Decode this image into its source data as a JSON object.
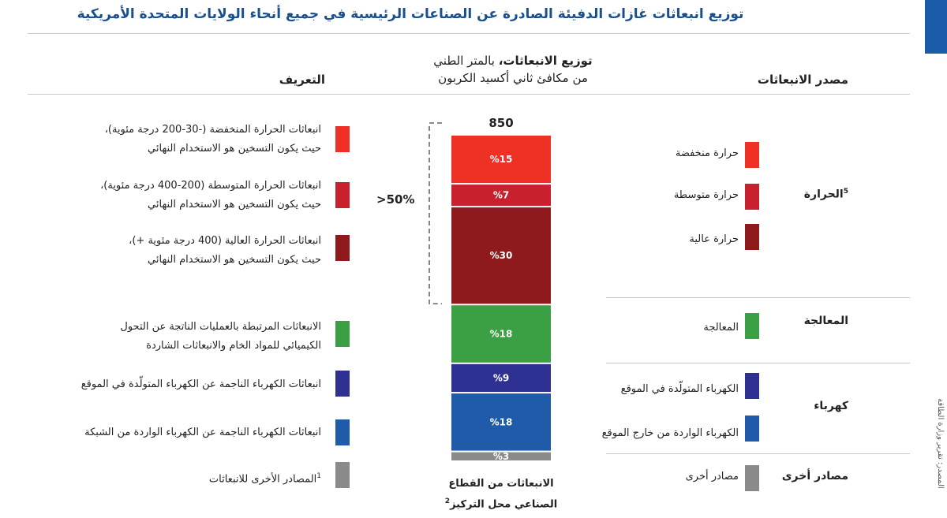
{
  "title": "توزيع انبعاثات غازات الدفيئة الصادرة عن الصناعات الرئيسية في جميع أنحاء الولايات المتحدة الأمريكية",
  "source_note": "المصدر: تقرير وزارة الطاقة",
  "headers": {
    "source": "مصدر الانبعاثات",
    "definition": "التعريف",
    "distribution_bold": "توزيع الانبعاثات،",
    "distribution_rest": " بالمتر الطني",
    "distribution_line2": "من مكافئ ثاني أكسيد الكربون"
  },
  "colors": {
    "low_heat": "#ee3124",
    "medium_heat": "#c8202c",
    "high_heat": "#8e1a1d",
    "processing": "#3aa043",
    "onsite_power": "#2e3192",
    "grid_power": "#1f5ba8",
    "other": "#8a8a8a"
  },
  "groups": [
    {
      "label": "الحرارة",
      "superscript": "5"
    },
    {
      "label": "المعالجة"
    },
    {
      "label": "كهرباء"
    },
    {
      "label": "مصادر أخرى"
    }
  ],
  "sources": [
    {
      "label": "حرارة منخفضة"
    },
    {
      "label": "حرارة متوسطة"
    },
    {
      "label": "حرارة عالية"
    },
    {
      "label": "المعالجة"
    },
    {
      "label": "الكهرباء المتولّدة في الموقع"
    },
    {
      "label": "الكهرباء الواردة من خارج الموقع"
    },
    {
      "label": "مصادر أخرى"
    }
  ],
  "definitions": [
    {
      "line1": "انبعاثات الحرارة المنخفضة (-30-200 درجة مئوية)،",
      "line2": "حيث يكون التسخين هو الاستخدام النهائي"
    },
    {
      "line1": "انبعاثات الحرارة المتوسطة (200-400 درجة مئوية)،",
      "line2": "حيث يكون التسخين هو الاستخدام النهائي"
    },
    {
      "line1": "انبعاثات الحرارة العالية (400 درجة مئوية +)،",
      "line2": "حيث يكون التسخين هو الاستخدام النهائي"
    },
    {
      "line1": "الانبعاثات المرتبطة بالعمليات الناتجة عن التحول",
      "line2": "الكيميائي للمواد الخام والانبعاثات الشاردة"
    },
    {
      "line1": "انبعاثات الكهرباء الناجمة عن الكهرباء المتولّدة في الموقع",
      "line2": ""
    },
    {
      "line1": "انبعاثات الكهرباء الناجمة عن الكهرباء الواردة من الشبكة",
      "line2": ""
    },
    {
      "line1": "المصادر الأخرى للانبعاثات",
      "line2": "",
      "superscript": "1"
    }
  ],
  "bracket_label": ">50%",
  "bar_caption_line1": "الانبعاثات من القطاع",
  "bar_caption_line2": "الصناعي محل التركيز",
  "bar_caption_superscript": "2",
  "chart_data": {
    "type": "bar",
    "stacked": true,
    "total_label": "850",
    "total": 850,
    "unit": "%",
    "series": [
      {
        "name": "حرارة منخفضة",
        "value": 15,
        "label": "%15",
        "color_key": "low_heat"
      },
      {
        "name": "حرارة متوسطة",
        "value": 7,
        "label": "%7",
        "color_key": "medium_heat"
      },
      {
        "name": "حرارة عالية",
        "value": 30,
        "label": "%30",
        "color_key": "high_heat"
      },
      {
        "name": "المعالجة",
        "value": 18,
        "label": "%18",
        "color_key": "processing"
      },
      {
        "name": "الكهرباء المتولّدة في الموقع",
        "value": 9,
        "label": "%9",
        "color_key": "onsite_power"
      },
      {
        "name": "الكهرباء الواردة من خارج الموقع",
        "value": 18,
        "label": "%18",
        "color_key": "grid_power"
      },
      {
        "name": "مصادر أخرى",
        "value": 3,
        "label": "%3",
        "color_key": "other"
      }
    ],
    "bracket": {
      "label": ">50%",
      "covers": [
        "حرارة منخفضة",
        "حرارة متوسطة",
        "حرارة عالية"
      ]
    }
  }
}
